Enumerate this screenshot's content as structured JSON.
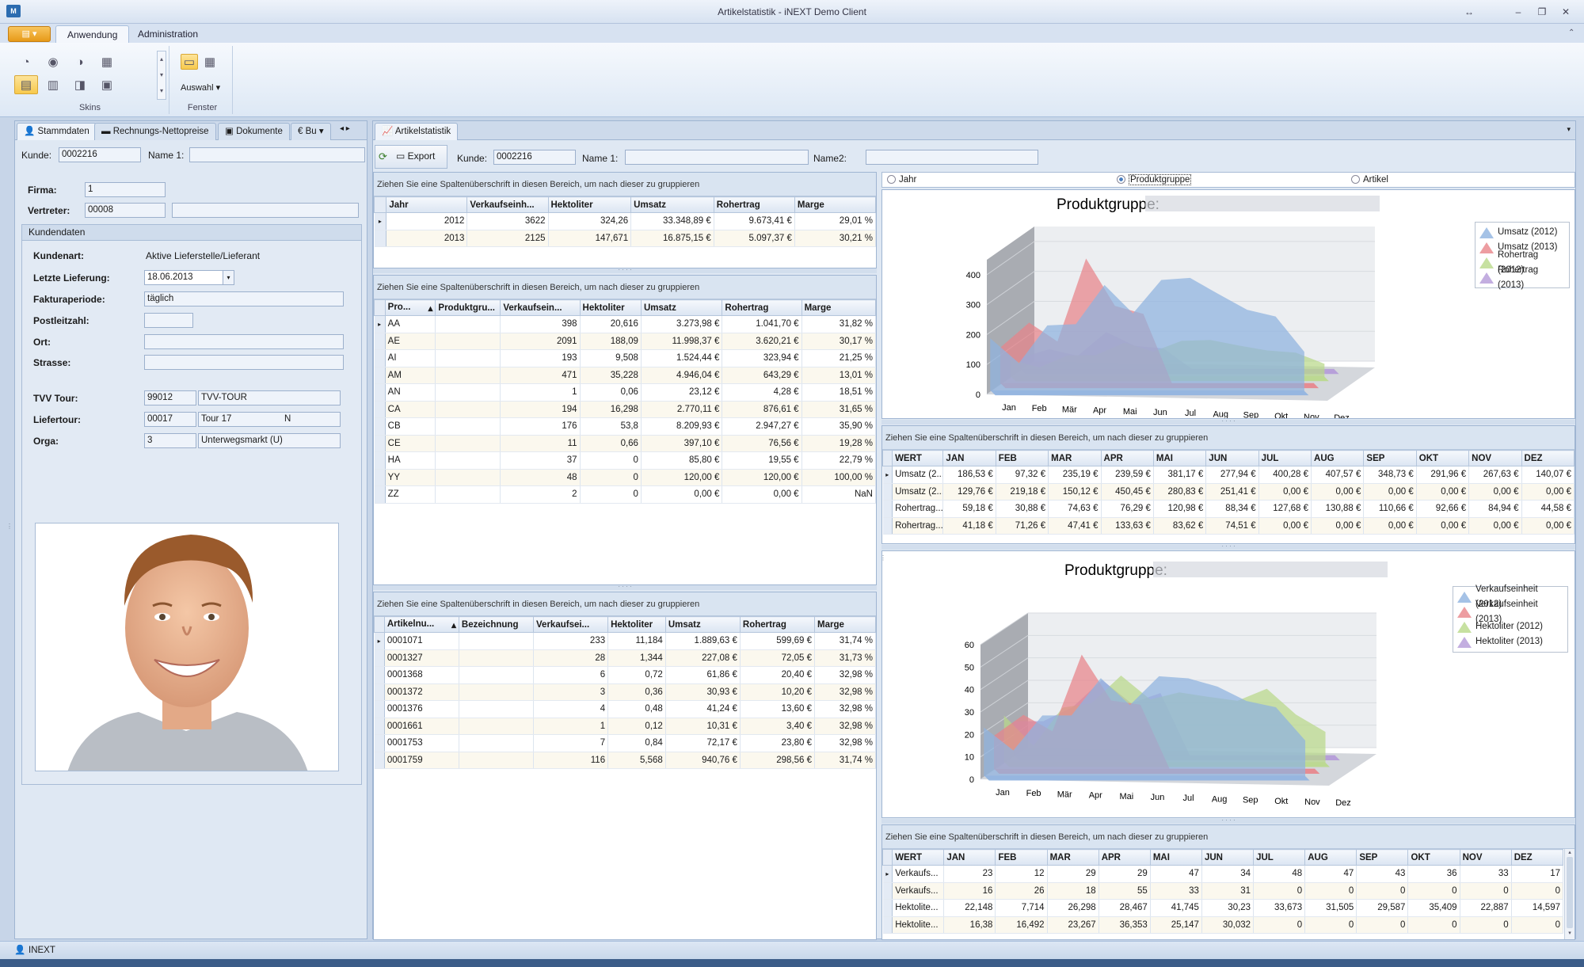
{
  "window": {
    "title": "Artikelstatistik - iNEXT Demo Client",
    "icon": "M"
  },
  "ribbon": {
    "tabs": [
      {
        "label": "Anwendung"
      },
      {
        "label": "Administration"
      }
    ],
    "groups": {
      "skins": "Skins",
      "fenster": "Fenster"
    },
    "auswahl": "Auswahl"
  },
  "left": {
    "tabs": [
      "Stammdaten",
      "Rechnungs-Nettopreise",
      "Dokumente",
      "Bu"
    ],
    "kunde_label": "Kunde:",
    "kunde_value": "0002216",
    "name1_label": "Name 1:",
    "firma_label": "Firma:",
    "firma_value": "1",
    "vertreter_label": "Vertreter:",
    "vertreter_value": "00008",
    "section": "Kundendaten",
    "kundenart_label": "Kundenart:",
    "kundenart_value": "Aktive Lieferstelle/Lieferant",
    "letzte_label": "Letzte Lieferung:",
    "letzte_value": "18.06.2013",
    "faktura_label": "Fakturaperiode:",
    "faktura_value": "täglich",
    "plz_label": "Postleitzahl:",
    "ort_label": "Ort:",
    "strasse_label": "Strasse:",
    "tvv_label": "TVV Tour:",
    "tvv_code": "99012",
    "tvv_name": "TVV-TOUR",
    "liefer_label": "Liefertour:",
    "liefer_code": "00017",
    "liefer_name": "Tour 17",
    "liefer_flag": "N",
    "orga_label": "Orga:",
    "orga_code": "3",
    "orga_name": "Unterwegsmarkt (U)"
  },
  "main": {
    "tab": "Artikelstatistik",
    "export_label": "Export",
    "kunde_label": "Kunde:",
    "kunde_value": "0002216",
    "name1_label": "Name 1:",
    "name2_label": "Name2:",
    "grouphint": "Ziehen Sie eine Spaltenüberschrift in diesen Bereich, um nach dieser zu gruppieren",
    "grid1": {
      "headers": [
        "Jahr",
        "Verkaufseinh...",
        "Hektoliter",
        "Umsatz",
        "Rohertrag",
        "Marge"
      ],
      "rows": [
        [
          "2012",
          "3622",
          "324,26",
          "33.348,89 €",
          "9.673,41 €",
          "29,01 %"
        ],
        [
          "2013",
          "2125",
          "147,671",
          "16.875,15 €",
          "5.097,37 €",
          "30,21 %"
        ]
      ]
    },
    "grid2": {
      "headers": [
        "Pro...",
        "Produktgru...",
        "Verkaufsein...",
        "Hektoliter",
        "Umsatz",
        "Rohertrag",
        "Marge"
      ],
      "rows": [
        [
          "AA",
          "",
          "398",
          "20,616",
          "3.273,98 €",
          "1.041,70 €",
          "31,82 %"
        ],
        [
          "AE",
          "",
          "2091",
          "188,09",
          "11.998,37 €",
          "3.620,21 €",
          "30,17 %"
        ],
        [
          "AI",
          "",
          "193",
          "9,508",
          "1.524,44 €",
          "323,94 €",
          "21,25 %"
        ],
        [
          "AM",
          "",
          "471",
          "35,228",
          "4.946,04 €",
          "643,29 €",
          "13,01 %"
        ],
        [
          "AN",
          "",
          "1",
          "0,06",
          "23,12 €",
          "4,28 €",
          "18,51 %"
        ],
        [
          "CA",
          "",
          "194",
          "16,298",
          "2.770,11 €",
          "876,61 €",
          "31,65 %"
        ],
        [
          "CB",
          "",
          "176",
          "53,8",
          "8.209,93 €",
          "2.947,27 €",
          "35,90 %"
        ],
        [
          "CE",
          "",
          "11",
          "0,66",
          "397,10 €",
          "76,56 €",
          "19,28 %"
        ],
        [
          "HA",
          "",
          "37",
          "0",
          "85,80 €",
          "19,55 €",
          "22,79 %"
        ],
        [
          "YY",
          "",
          "48",
          "0",
          "120,00 €",
          "120,00 €",
          "100,00 %"
        ],
        [
          "ZZ",
          "",
          "2",
          "0",
          "0,00 €",
          "0,00 €",
          "NaN"
        ]
      ]
    },
    "grid3": {
      "headers": [
        "Artikelnu...",
        "Bezeichnung",
        "Verkaufsei...",
        "Hektoliter",
        "Umsatz",
        "Rohertrag",
        "Marge"
      ],
      "rows": [
        [
          "0001071",
          "",
          "233",
          "11,184",
          "1.889,63 €",
          "599,69 €",
          "31,74 %"
        ],
        [
          "0001327",
          "",
          "28",
          "1,344",
          "227,08 €",
          "72,05 €",
          "31,73 %"
        ],
        [
          "0001368",
          "",
          "6",
          "0,72",
          "61,86 €",
          "20,40 €",
          "32,98 %"
        ],
        [
          "0001372",
          "",
          "3",
          "0,36",
          "30,93 €",
          "10,20 €",
          "32,98 %"
        ],
        [
          "0001376",
          "",
          "4",
          "0,48",
          "41,24 €",
          "13,60 €",
          "32,98 %"
        ],
        [
          "0001661",
          "",
          "1",
          "0,12",
          "10,31 €",
          "3,40 €",
          "32,98 %"
        ],
        [
          "0001753",
          "",
          "7",
          "0,84",
          "72,17 €",
          "23,80 €",
          "32,98 %"
        ],
        [
          "0001759",
          "",
          "116",
          "5,568",
          "940,76 €",
          "298,56 €",
          "31,74 %"
        ]
      ]
    }
  },
  "right": {
    "radios": [
      "Jahr",
      "Produktgruppe",
      "Artikel"
    ],
    "selected_radio": "Produktgruppe",
    "month_headers": [
      "WERT",
      "JAN",
      "FEB",
      "MAR",
      "APR",
      "MAI",
      "JUN",
      "JUL",
      "AUG",
      "SEP",
      "OKT",
      "NOV",
      "DEZ"
    ],
    "grid_top": [
      [
        "Umsatz (2...",
        "186,53 €",
        "97,32 €",
        "235,19 €",
        "239,59 €",
        "381,17 €",
        "277,94 €",
        "400,28 €",
        "407,57 €",
        "348,73 €",
        "291,96 €",
        "267,63 €",
        "140,07 €"
      ],
      [
        "Umsatz (2...",
        "129,76 €",
        "219,18 €",
        "150,12 €",
        "450,45 €",
        "280,83 €",
        "251,41 €",
        "0,00 €",
        "0,00 €",
        "0,00 €",
        "0,00 €",
        "0,00 €",
        "0,00 €"
      ],
      [
        "Rohertrag...",
        "59,18 €",
        "30,88 €",
        "74,63 €",
        "76,29 €",
        "120,98 €",
        "88,34 €",
        "127,68 €",
        "130,88 €",
        "110,66 €",
        "92,66 €",
        "84,94 €",
        "44,58 €"
      ],
      [
        "Rohertrag...",
        "41,18 €",
        "71,26 €",
        "47,41 €",
        "133,63 €",
        "83,62 €",
        "74,51 €",
        "0,00 €",
        "0,00 €",
        "0,00 €",
        "0,00 €",
        "0,00 €",
        "0,00 €"
      ]
    ],
    "grid_bottom": [
      [
        "Verkaufs...",
        "23",
        "12",
        "29",
        "29",
        "47",
        "34",
        "48",
        "47",
        "43",
        "36",
        "33",
        "17"
      ],
      [
        "Verkaufs...",
        "16",
        "26",
        "18",
        "55",
        "33",
        "31",
        "0",
        "0",
        "0",
        "0",
        "0",
        "0"
      ],
      [
        "Hektolite...",
        "22,148",
        "7,714",
        "26,298",
        "28,467",
        "41,745",
        "30,23",
        "33,673",
        "31,505",
        "29,587",
        "35,409",
        "22,887",
        "14,597"
      ],
      [
        "Hektolite...",
        "16,38",
        "16,492",
        "23,267",
        "36,353",
        "25,147",
        "30,032",
        "0",
        "0",
        "0",
        "0",
        "0",
        "0"
      ]
    ]
  },
  "chart_data": [
    {
      "type": "area",
      "title": "Produktgruppe:",
      "categories": [
        "Jan",
        "Feb",
        "Mär",
        "Apr",
        "Mai",
        "Jun",
        "Jul",
        "Aug",
        "Sep",
        "Okt",
        "Nov",
        "Dez"
      ],
      "ylim": [
        0,
        450
      ],
      "yticks": [
        0,
        100,
        200,
        300,
        400
      ],
      "legend_position": "top-right",
      "series": [
        {
          "name": "Umsatz (2012)",
          "color": "#8fb3e0",
          "values": [
            186.53,
            97.32,
            235.19,
            239.59,
            381.17,
            277.94,
            400.28,
            407.57,
            348.73,
            291.96,
            267.63,
            140.07
          ]
        },
        {
          "name": "Umsatz (2013)",
          "color": "#e8848a",
          "values": [
            129.76,
            219.18,
            150.12,
            450.45,
            280.83,
            251.41,
            0,
            0,
            0,
            0,
            0,
            0
          ]
        },
        {
          "name": "Rohertrag (2012)",
          "color": "#b9d98a",
          "values": [
            59.18,
            30.88,
            74.63,
            76.29,
            120.98,
            88.34,
            127.68,
            130.88,
            110.66,
            92.66,
            84.94,
            44.58
          ]
        },
        {
          "name": "Rohertrag (2013)",
          "color": "#b49ad8",
          "values": [
            41.18,
            71.26,
            47.41,
            133.63,
            83.62,
            74.51,
            0,
            0,
            0,
            0,
            0,
            0
          ]
        }
      ]
    },
    {
      "type": "area",
      "title": "Produktgruppe:",
      "categories": [
        "Jan",
        "Feb",
        "Mär",
        "Apr",
        "Mai",
        "Jun",
        "Jul",
        "Aug",
        "Sep",
        "Okt",
        "Nov",
        "Dez"
      ],
      "ylim": [
        0,
        60
      ],
      "yticks": [
        0,
        10,
        20,
        30,
        40,
        50,
        60
      ],
      "legend_position": "top-right",
      "series": [
        {
          "name": "Verkaufseinheit (2012)",
          "color": "#8fb3e0",
          "values": [
            23,
            12,
            29,
            29,
            47,
            34,
            48,
            47,
            43,
            36,
            33,
            17
          ]
        },
        {
          "name": "Verkaufseinheit (2013)",
          "color": "#e8848a",
          "values": [
            16,
            26,
            18,
            55,
            33,
            31,
            0,
            0,
            0,
            0,
            0,
            0
          ]
        },
        {
          "name": "Hektoliter (2012)",
          "color": "#b9d98a",
          "values": [
            22.148,
            7.714,
            26.298,
            28.467,
            41.745,
            30.23,
            33.673,
            31.505,
            29.587,
            35.409,
            22.887,
            14.597
          ]
        },
        {
          "name": "Hektoliter (2013)",
          "color": "#b49ad8",
          "values": [
            16.38,
            16.492,
            23.267,
            36.353,
            25.147,
            30.032,
            0,
            0,
            0,
            0,
            0,
            0
          ]
        }
      ]
    }
  ],
  "status": {
    "user": "INEXT"
  }
}
